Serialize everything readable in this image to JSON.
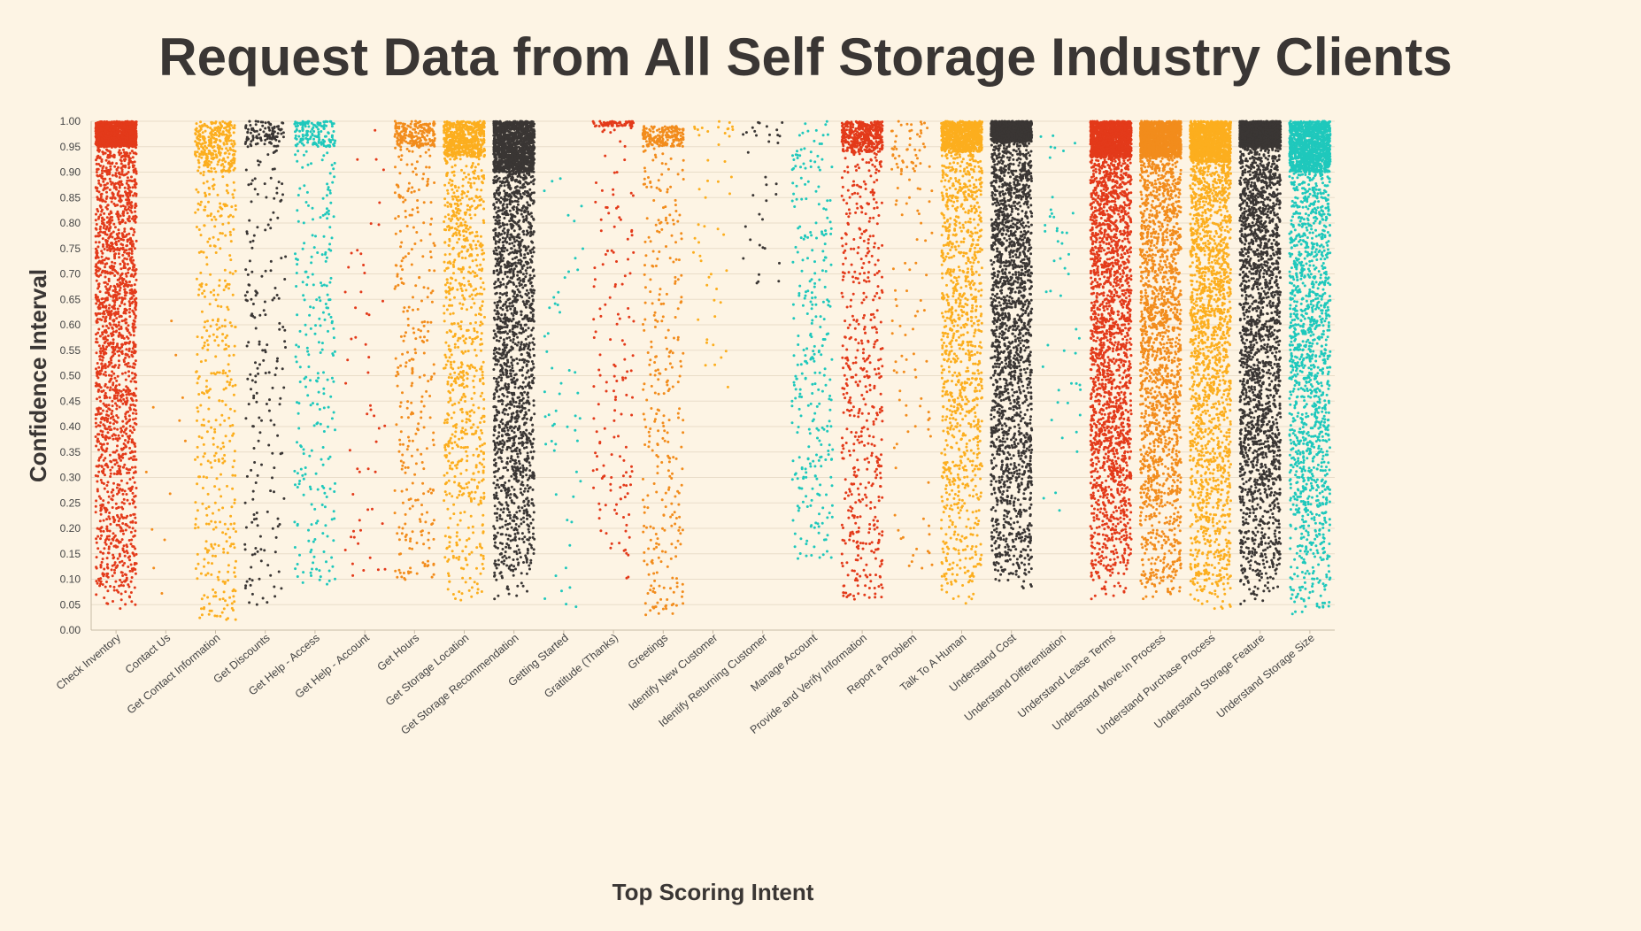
{
  "chart_data": {
    "type": "scatter",
    "title": "Request Data from All Self Storage Industry Clients",
    "xlabel": "Top Scoring Intent",
    "ylabel": "Confidence Interval",
    "ylim": [
      0,
      1
    ],
    "yticks": [
      "0.00",
      "0.05",
      "0.10",
      "0.15",
      "0.20",
      "0.25",
      "0.30",
      "0.35",
      "0.40",
      "0.45",
      "0.50",
      "0.55",
      "0.60",
      "0.65",
      "0.70",
      "0.75",
      "0.80",
      "0.85",
      "0.90",
      "0.95",
      "1.00"
    ],
    "grid": true,
    "legend": "none",
    "categories": [
      "Check Inventory",
      "Contact Us",
      "Get Contact Information",
      "Get Discounts",
      "Get Help - Access",
      "Get Help - Account",
      "Get Hours",
      "Get Storage Location",
      "Get Storage Recommendation",
      "Getting Started",
      "Gratitude (Thanks)",
      "Greetings",
      "Identify New Customer",
      "Identify Returning Customer",
      "Manage Account",
      "Provide and Verify Information",
      "Report a Problem",
      "Talk To A Human",
      "Understand Cost",
      "Understand Differentiation",
      "Understand Lease Terms",
      "Understand Move-In Process",
      "Understand Purchase Process",
      "Understand Storage Feature",
      "Understand Storage Size"
    ],
    "colors": {
      "red": "#e33a1a",
      "gold": "#fcae1e",
      "orange": "#f28c1c",
      "dark": "#3a3634",
      "teal": "#1fc8bc"
    },
    "series": [
      {
        "category": "Check Inventory",
        "color": "red",
        "approx_points": 3000,
        "min": 0.04,
        "max": 1.0,
        "dense_top": 0.95
      },
      {
        "category": "Contact Us",
        "color": "orange",
        "approx_points": 12,
        "min": 0.04,
        "max": 0.67,
        "dense_top": null
      },
      {
        "category": "Get Contact Information",
        "color": "gold",
        "approx_points": 700,
        "min": 0.02,
        "max": 1.0,
        "dense_top": 0.9
      },
      {
        "category": "Get Discounts",
        "color": "dark",
        "approx_points": 300,
        "min": 0.04,
        "max": 1.0,
        "dense_top": 0.95
      },
      {
        "category": "Get Help - Access",
        "color": "teal",
        "approx_points": 400,
        "min": 0.09,
        "max": 1.0,
        "dense_top": 0.95
      },
      {
        "category": "Get Help - Account",
        "color": "red",
        "approx_points": 55,
        "min": 0.1,
        "max": 0.99,
        "dense_top": null
      },
      {
        "category": "Get Hours",
        "color": "orange",
        "approx_points": 500,
        "min": 0.09,
        "max": 1.0,
        "dense_top": 0.95
      },
      {
        "category": "Get Storage Location",
        "color": "gold",
        "approx_points": 1300,
        "min": 0.04,
        "max": 1.0,
        "dense_top": 0.93
      },
      {
        "category": "Get Storage Recommendation",
        "color": "dark",
        "approx_points": 3000,
        "min": 0.06,
        "max": 1.0,
        "dense_top": 0.9
      },
      {
        "category": "Getting Started",
        "color": "teal",
        "approx_points": 55,
        "min": 0.03,
        "max": 0.92,
        "dense_top": null
      },
      {
        "category": "Gratitude (Thanks)",
        "color": "red",
        "approx_points": 220,
        "min": 0.1,
        "max": 1.0,
        "dense_top": 0.99
      },
      {
        "category": "Greetings",
        "color": "orange",
        "approx_points": 500,
        "min": 0.03,
        "max": 0.99,
        "dense_top": 0.95
      },
      {
        "category": "Identify New Customer",
        "color": "gold",
        "approx_points": 50,
        "min": 0.47,
        "max": 1.0,
        "dense_top": 0.97
      },
      {
        "category": "Identify Returning Customer",
        "color": "dark",
        "approx_points": 35,
        "min": 0.68,
        "max": 1.0,
        "dense_top": 0.97
      },
      {
        "category": "Manage Account",
        "color": "teal",
        "approx_points": 300,
        "min": 0.14,
        "max": 1.0,
        "dense_top": null
      },
      {
        "category": "Provide and Verify Information",
        "color": "red",
        "approx_points": 900,
        "min": 0.06,
        "max": 1.0,
        "dense_top": 0.94
      },
      {
        "category": "Report a Problem",
        "color": "orange",
        "approx_points": 130,
        "min": 0.11,
        "max": 1.0,
        "dense_top": 0.9
      },
      {
        "category": "Talk To A Human",
        "color": "gold",
        "approx_points": 1800,
        "min": 0.05,
        "max": 1.0,
        "dense_top": 0.94
      },
      {
        "category": "Understand Cost",
        "color": "dark",
        "approx_points": 3200,
        "min": 0.08,
        "max": 1.0,
        "dense_top": 0.96
      },
      {
        "category": "Understand Differentiation",
        "color": "teal",
        "approx_points": 50,
        "min": 0.22,
        "max": 0.98,
        "dense_top": null
      },
      {
        "category": "Understand Lease Terms",
        "color": "red",
        "approx_points": 3500,
        "min": 0.06,
        "max": 1.0,
        "dense_top": 0.93
      },
      {
        "category": "Understand Move-In Process",
        "color": "orange",
        "approx_points": 3000,
        "min": 0.06,
        "max": 1.0,
        "dense_top": 0.93
      },
      {
        "category": "Understand Purchase Process",
        "color": "gold",
        "approx_points": 3000,
        "min": 0.04,
        "max": 1.0,
        "dense_top": 0.92
      },
      {
        "category": "Understand Storage Feature",
        "color": "dark",
        "approx_points": 3500,
        "min": 0.05,
        "max": 1.0,
        "dense_top": 0.95
      },
      {
        "category": "Understand Storage Size",
        "color": "teal",
        "approx_points": 2500,
        "min": 0.03,
        "max": 1.0,
        "dense_top": 0.9
      }
    ]
  }
}
